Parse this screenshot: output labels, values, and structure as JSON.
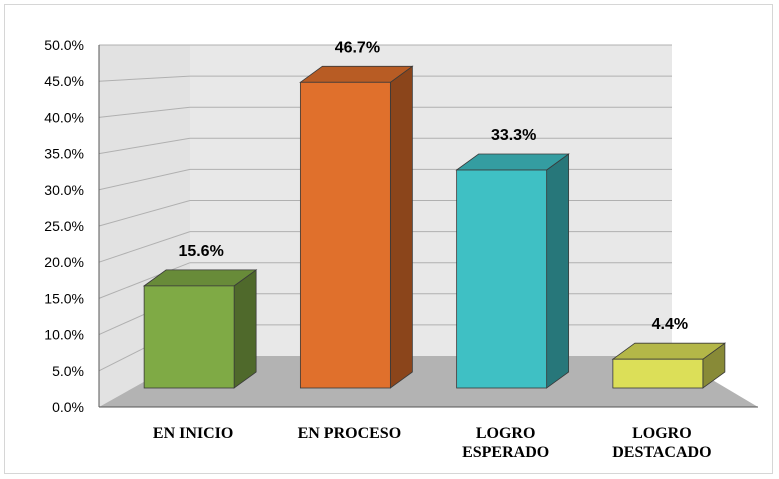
{
  "chart_data": {
    "type": "bar",
    "categories": [
      [
        "EN INICIO"
      ],
      [
        "EN PROCESO"
      ],
      [
        "LOGRO",
        "ESPERADO"
      ],
      [
        "LOGRO",
        "DESTACADO"
      ]
    ],
    "values": [
      15.6,
      46.7,
      33.3,
      4.4
    ],
    "data_labels": [
      "15.6%",
      "46.7%",
      "33.3%",
      "4.4%"
    ],
    "y_tick_labels": [
      "0.0%",
      "5.0%",
      "10.0%",
      "15.0%",
      "20.0%",
      "25.0%",
      "30.0%",
      "35.0%",
      "40.0%",
      "45.0%",
      "50.0%"
    ],
    "ylim": [
      0,
      50
    ],
    "grid": true,
    "title": "",
    "xlabel": "",
    "ylabel": "",
    "colors": {
      "bars": [
        "#7faa45",
        "#e0702c",
        "#3fc0c4",
        "#dcdf58"
      ],
      "wall": "#e8e8e8",
      "floor": "#b3b3b3",
      "grid": "#b0b0b0"
    }
  }
}
